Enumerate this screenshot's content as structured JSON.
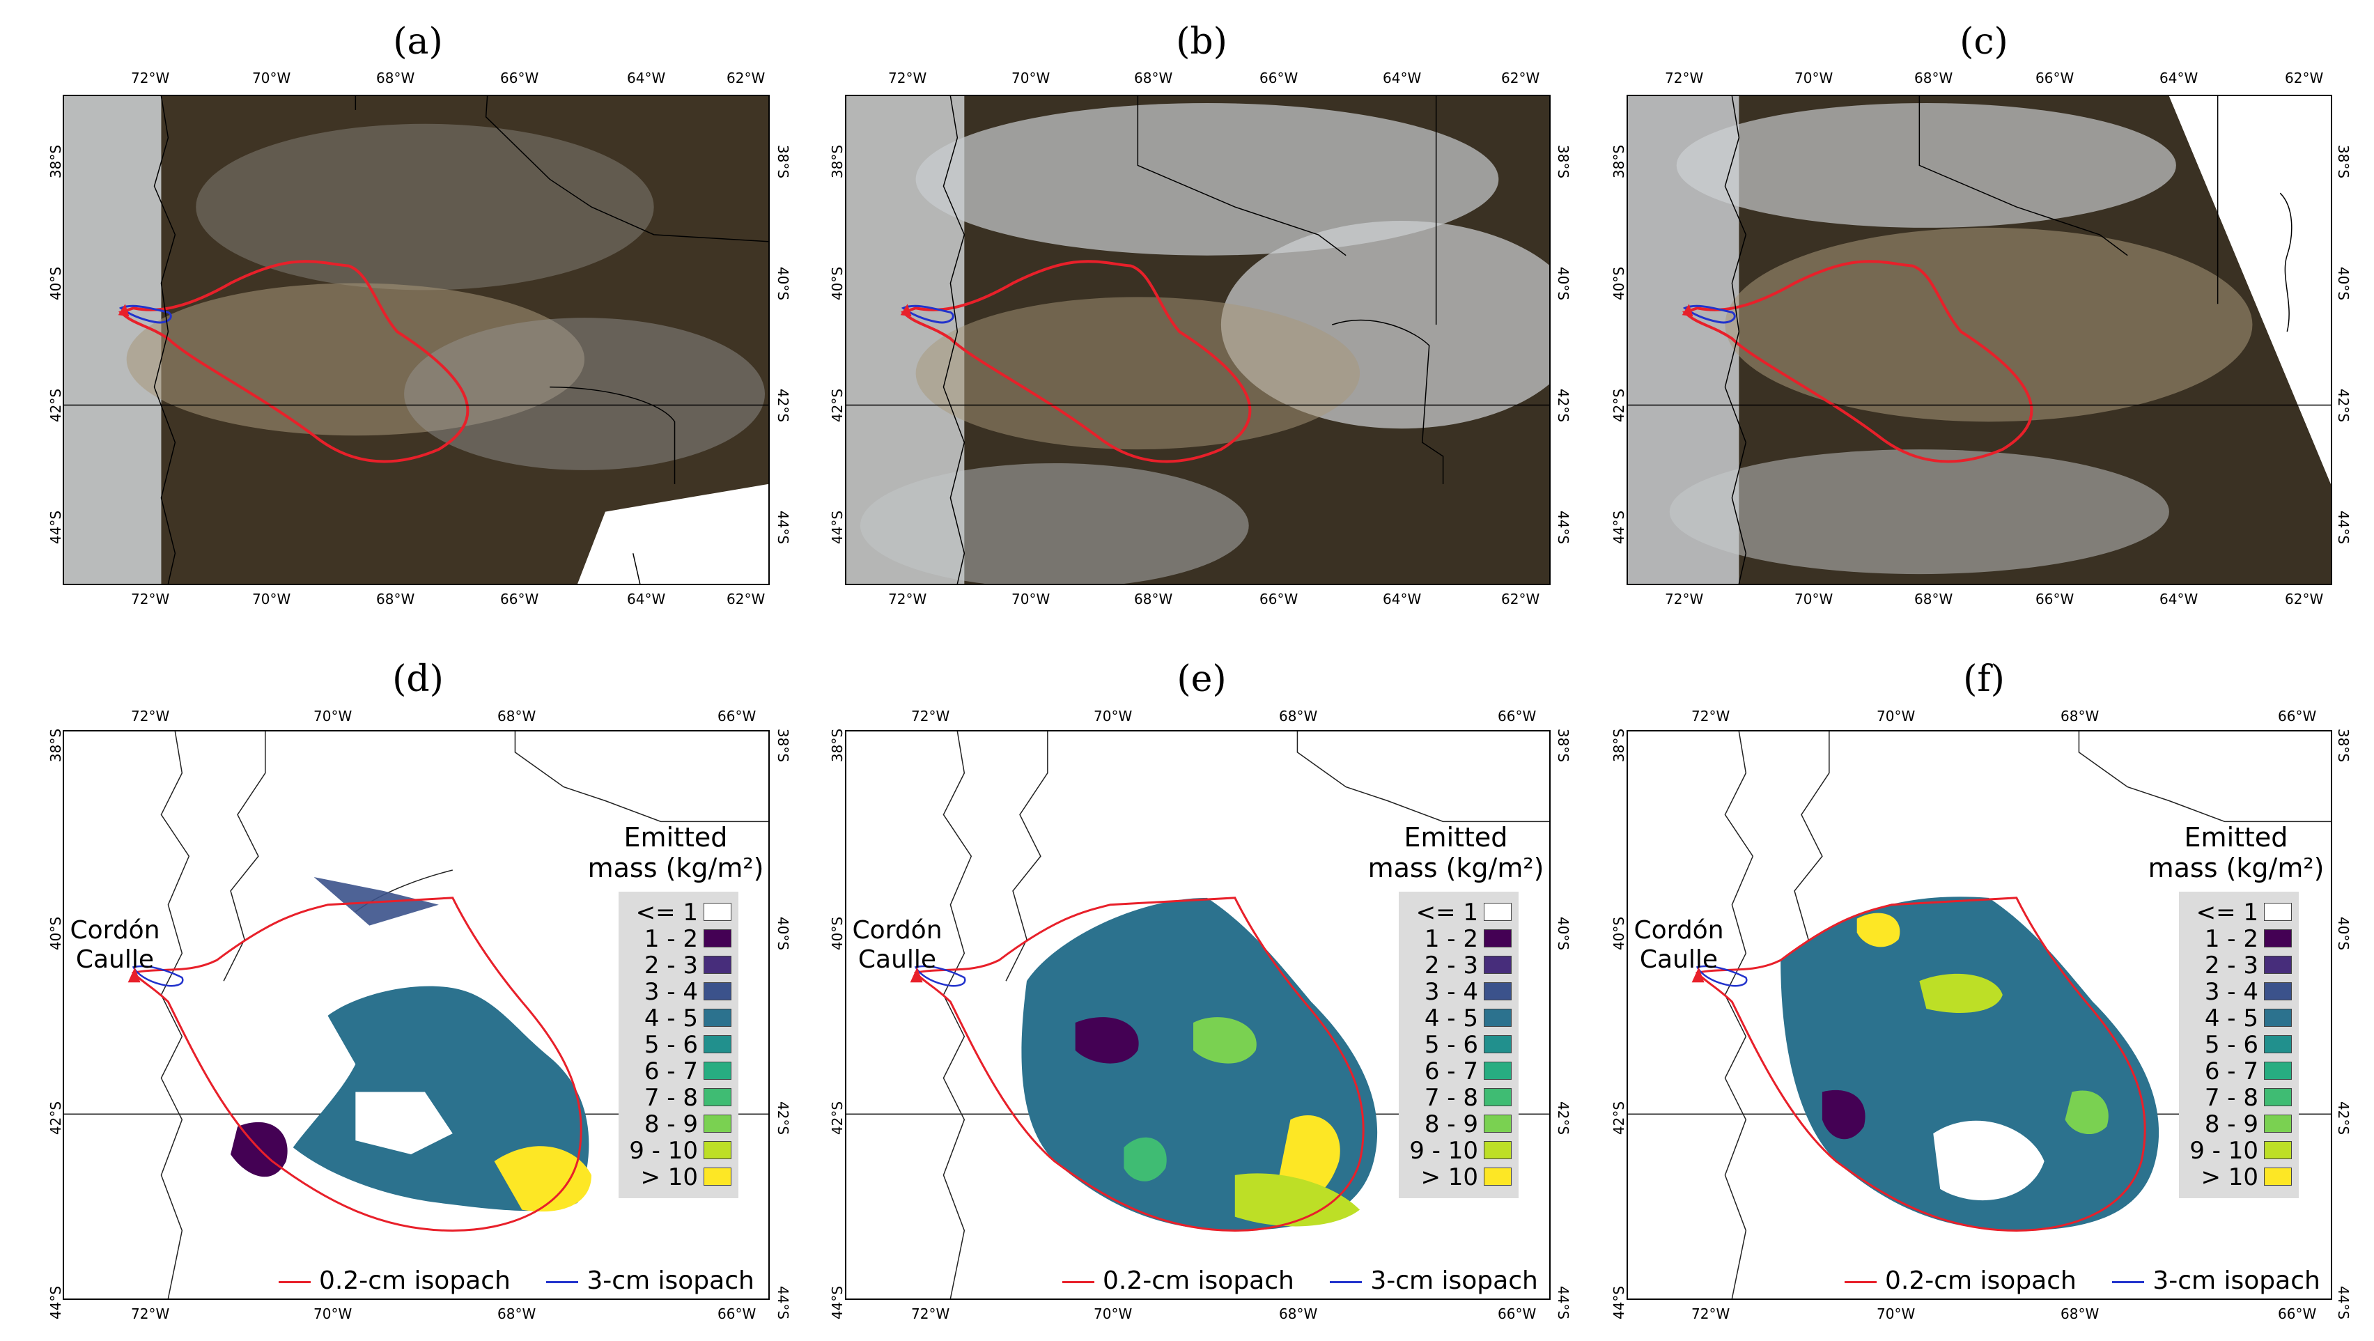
{
  "panels_top": [
    {
      "label": "(a)"
    },
    {
      "label": "(b)"
    },
    {
      "label": "(c)"
    }
  ],
  "panels_bottom": [
    {
      "label": "(d)"
    },
    {
      "label": "(e)"
    },
    {
      "label": "(f)"
    }
  ],
  "top_axes": {
    "lon_ticks": [
      "72°W",
      "70°W",
      "68°W",
      "66°W",
      "64°W",
      "62°W"
    ],
    "lat_ticks": [
      "38°S",
      "40°S",
      "42°S",
      "44°S"
    ]
  },
  "bottom_axes": {
    "lon_ticks": [
      "72°W",
      "70°W",
      "68°W",
      "66°W"
    ],
    "lat_ticks": [
      "38°S",
      "40°S",
      "42°S",
      "44°S"
    ]
  },
  "volcano": {
    "line1": "Cordón",
    "line2": "Caulle",
    "marker_color": "#e8202a"
  },
  "legend": {
    "title_line1": "Emitted",
    "title_line2": "mass (kg/m²)",
    "classes": [
      {
        "label": "<= 1",
        "color": "#ffffff"
      },
      {
        "label": "1 - 2",
        "color": "#440154"
      },
      {
        "label": "2 - 3",
        "color": "#472d7b"
      },
      {
        "label": "3 - 4",
        "color": "#3b528b"
      },
      {
        "label": "4 - 5",
        "color": "#2c728e"
      },
      {
        "label": "5 - 6",
        "color": "#21908d"
      },
      {
        "label": "6 - 7",
        "color": "#27ad81"
      },
      {
        "label": "7 - 8",
        "color": "#3fbc73"
      },
      {
        "label": "8 - 9",
        "color": "#7ad151"
      },
      {
        "label": "9 - 10",
        "color": "#bddf26"
      },
      {
        "label": "> 10",
        "color": "#fde725"
      }
    ]
  },
  "isopach_legend": {
    "thin_label": "0.2-cm isopach",
    "thin_color": "#e8202a",
    "thick_label": "3-cm isopach",
    "thick_color": "#2233cc"
  }
}
